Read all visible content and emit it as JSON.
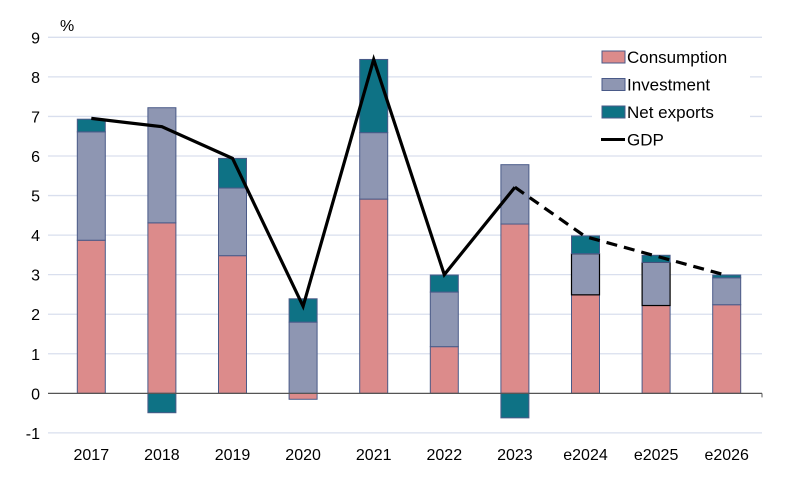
{
  "chart_data": {
    "type": "bar",
    "stacked": true,
    "ylabel": "%",
    "ylim": [
      -1,
      9
    ],
    "yticks": [
      -1,
      0,
      1,
      2,
      3,
      4,
      5,
      6,
      7,
      8,
      9
    ],
    "grid": true,
    "legend_position": "top-right",
    "categories": [
      "2017",
      "2018",
      "2019",
      "2020",
      "2021",
      "2022",
      "2023",
      "e2024",
      "e2025",
      "e2026"
    ],
    "series": [
      {
        "name": "Consumption",
        "kind": "bar",
        "color": "#dc8b8b",
        "values": [
          3.87,
          4.31,
          3.48,
          -0.15,
          4.91,
          1.18,
          4.28,
          2.49,
          2.22,
          2.24
        ]
      },
      {
        "name": "Investment",
        "kind": "bar",
        "color": "#8e96b2",
        "values": [
          2.74,
          2.91,
          1.71,
          1.8,
          1.68,
          1.38,
          1.5,
          1.04,
          1.09,
          0.68
        ]
      },
      {
        "name": "Net exports",
        "kind": "bar",
        "color": "#0e7285",
        "values": [
          0.32,
          -0.49,
          0.75,
          0.59,
          1.85,
          0.43,
          -0.62,
          0.45,
          0.18,
          0.07
        ]
      },
      {
        "name": "GDP",
        "kind": "line",
        "color": "#000000",
        "values": [
          6.95,
          6.74,
          5.94,
          2.2,
          8.44,
          3.0,
          5.21,
          3.96,
          3.47,
          2.98
        ],
        "dashed_from": "2023"
      }
    ]
  }
}
